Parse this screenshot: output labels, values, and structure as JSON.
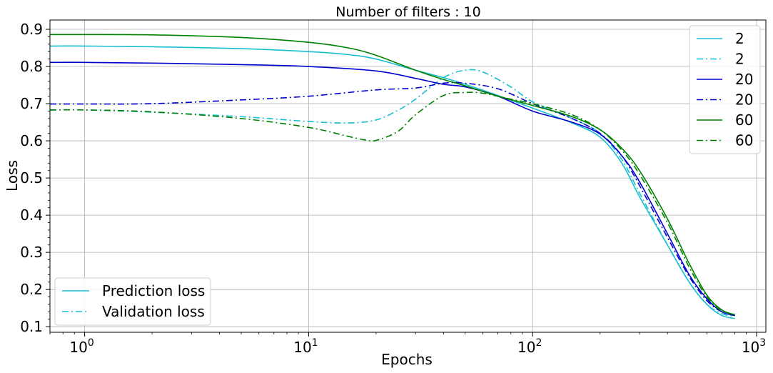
{
  "chart_data": {
    "type": "line",
    "title": "Number of filters : 10",
    "xlabel": "Epochs",
    "ylabel": "Loss",
    "xscale": "log",
    "xlim": [
      0.7,
      1100
    ],
    "ylim": [
      0.085,
      0.925
    ],
    "xticks": [
      1,
      10,
      100,
      1000
    ],
    "xtick_labels": [
      {
        "base": "10",
        "exp": "0"
      },
      {
        "base": "10",
        "exp": "1"
      },
      {
        "base": "10",
        "exp": "2"
      },
      {
        "base": "10",
        "exp": "3"
      }
    ],
    "yticks": [
      0.1,
      0.2,
      0.3,
      0.4,
      0.5,
      0.6,
      0.7,
      0.8,
      0.9
    ],
    "ytick_labels": [
      "0.1",
      "0.2",
      "0.3",
      "0.4",
      "0.5",
      "0.6",
      "0.7",
      "0.8",
      "0.9"
    ],
    "grid": true,
    "legend_position": "top-right",
    "series": [
      {
        "name": "2",
        "color": "#17becf",
        "style": "solid",
        "x": [
          0.7,
          1,
          2,
          5,
          10,
          15,
          20,
          30,
          40,
          50,
          70,
          100,
          150,
          200,
          250,
          300,
          400,
          500,
          600,
          700,
          800
        ],
        "y": [
          0.855,
          0.855,
          0.853,
          0.848,
          0.84,
          0.832,
          0.82,
          0.79,
          0.77,
          0.752,
          0.722,
          0.688,
          0.648,
          0.61,
          0.54,
          0.45,
          0.32,
          0.22,
          0.16,
          0.13,
          0.122
        ]
      },
      {
        "name": "2",
        "color": "#17becf",
        "style": "dashdot",
        "x": [
          0.7,
          1,
          2,
          5,
          10,
          15,
          20,
          25,
          30,
          40,
          50,
          60,
          80,
          100,
          150,
          200,
          250,
          300,
          400,
          500,
          600,
          700,
          800
        ],
        "y": [
          0.683,
          0.683,
          0.677,
          0.665,
          0.652,
          0.648,
          0.656,
          0.682,
          0.712,
          0.77,
          0.79,
          0.785,
          0.745,
          0.705,
          0.66,
          0.62,
          0.55,
          0.46,
          0.32,
          0.22,
          0.16,
          0.135,
          0.128
        ]
      },
      {
        "name": "20",
        "color": "#0000cd",
        "style": "solid",
        "x": [
          0.7,
          1,
          2,
          5,
          10,
          20,
          30,
          40,
          50,
          70,
          100,
          150,
          200,
          250,
          300,
          400,
          500,
          600,
          700,
          800
        ],
        "y": [
          0.811,
          0.811,
          0.809,
          0.805,
          0.8,
          0.788,
          0.768,
          0.752,
          0.745,
          0.72,
          0.68,
          0.65,
          0.618,
          0.56,
          0.49,
          0.35,
          0.24,
          0.175,
          0.14,
          0.13
        ]
      },
      {
        "name": "20",
        "color": "#0000cd",
        "style": "dashdot",
        "x": [
          0.7,
          1,
          2,
          5,
          10,
          20,
          30,
          40,
          50,
          70,
          100,
          150,
          200,
          250,
          300,
          400,
          500,
          600,
          700,
          800
        ],
        "y": [
          0.699,
          0.699,
          0.7,
          0.71,
          0.72,
          0.737,
          0.742,
          0.755,
          0.755,
          0.74,
          0.7,
          0.66,
          0.62,
          0.56,
          0.48,
          0.34,
          0.235,
          0.17,
          0.14,
          0.133
        ]
      },
      {
        "name": "60",
        "color": "#008000",
        "style": "solid",
        "x": [
          0.7,
          1,
          2,
          5,
          10,
          15,
          20,
          30,
          40,
          50,
          70,
          100,
          150,
          200,
          250,
          300,
          400,
          500,
          600,
          700,
          800
        ],
        "y": [
          0.886,
          0.886,
          0.885,
          0.878,
          0.865,
          0.85,
          0.83,
          0.79,
          0.765,
          0.748,
          0.72,
          0.695,
          0.665,
          0.63,
          0.58,
          0.52,
          0.39,
          0.27,
          0.185,
          0.145,
          0.132
        ]
      },
      {
        "name": "60",
        "color": "#008000",
        "style": "dashdot",
        "x": [
          0.7,
          1,
          2,
          5,
          10,
          15,
          18,
          20,
          25,
          30,
          40,
          50,
          60,
          80,
          100,
          150,
          200,
          250,
          300,
          400,
          500,
          600,
          700,
          800
        ],
        "y": [
          0.683,
          0.683,
          0.678,
          0.66,
          0.636,
          0.612,
          0.602,
          0.601,
          0.625,
          0.67,
          0.722,
          0.73,
          0.728,
          0.712,
          0.7,
          0.67,
          0.63,
          0.575,
          0.51,
          0.38,
          0.26,
          0.18,
          0.142,
          0.133
        ]
      }
    ],
    "style_legend": [
      {
        "label": "Prediction loss",
        "style": "solid",
        "color": "#17becf"
      },
      {
        "label": "Validation loss",
        "style": "dashdot",
        "color": "#17becf"
      }
    ]
  }
}
